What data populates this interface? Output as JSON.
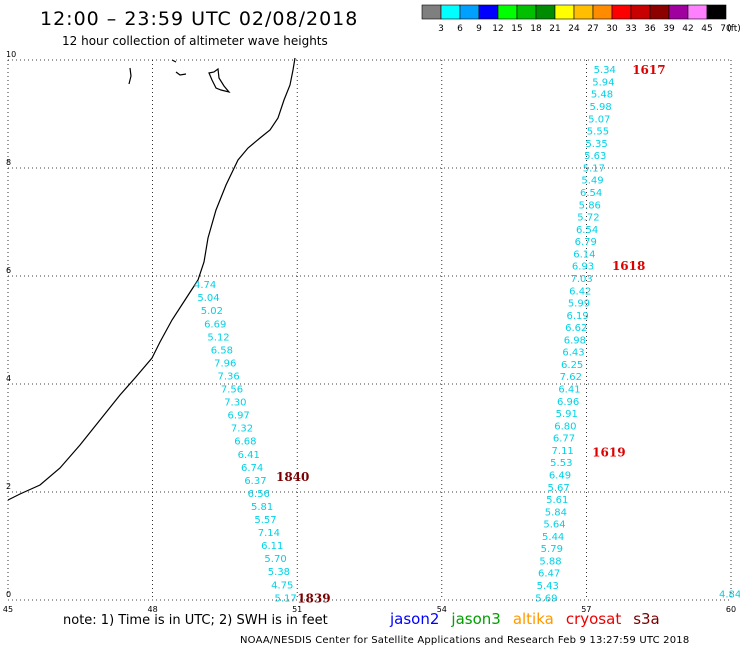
{
  "header": {
    "title": "12:00 – 23:59 UTC 02/08/2018",
    "subtitle": "12 hour collection of altimeter wave heights"
  },
  "legend": {
    "unit": "(ft)",
    "bins": [
      {
        "label": "3",
        "color": "#7f7f7f"
      },
      {
        "label": "6",
        "color": "#00ffff"
      },
      {
        "label": "9",
        "color": "#00a0ff"
      },
      {
        "label": "12",
        "color": "#0000ff"
      },
      {
        "label": "15",
        "color": "#00ff00"
      },
      {
        "label": "18",
        "color": "#00c000"
      },
      {
        "label": "21",
        "color": "#008c00"
      },
      {
        "label": "24",
        "color": "#ffff00"
      },
      {
        "label": "27",
        "color": "#ffbf00"
      },
      {
        "label": "30",
        "color": "#ff8c00"
      },
      {
        "label": "33",
        "color": "#ff0000"
      },
      {
        "label": "36",
        "color": "#c80000"
      },
      {
        "label": "39",
        "color": "#8c0000"
      },
      {
        "label": "42",
        "color": "#a000a0"
      },
      {
        "label": "45",
        "color": "#ff80ff"
      },
      {
        "label": "70",
        "color": "#000000"
      }
    ]
  },
  "axes": {
    "x_ticks": [
      "45",
      "48",
      "51",
      "54",
      "57",
      "60"
    ],
    "y_ticks": [
      "0",
      "2",
      "4",
      "6",
      "8",
      "10"
    ]
  },
  "chart_data": {
    "type": "scatter",
    "xlim": [
      45,
      60
    ],
    "ylim": [
      0,
      10
    ],
    "grid": true,
    "value_color": "#00d2e6",
    "tracks": [
      {
        "name": "track-west",
        "values": [
          "4.74",
          "5.04",
          "5.02",
          "6.69",
          "5.12",
          "6.58",
          "7.96",
          "7.36",
          "7.56",
          "7.30",
          "6.97",
          "7.32",
          "6.68",
          "6.41",
          "6.74",
          "6.37",
          "6.56",
          "5.81",
          "5.57",
          "7.14",
          "6.11",
          "5.70",
          "5.38",
          "4.75",
          "5.17"
        ],
        "start": {
          "lon": 49.09,
          "lat": 5.85
        },
        "end": {
          "lon": 50.76,
          "lat": 0.05
        }
      },
      {
        "name": "track-middle",
        "values": [
          "5.34",
          "5.94",
          "5.48",
          "5.98",
          "5.07",
          "5.55",
          "5.35",
          "5.63",
          "5.17",
          "5.49",
          "6.54",
          "5.86",
          "5.72",
          "6.54",
          "6.79",
          "6.14",
          "6.93",
          "7.03",
          "6.42",
          "5.99",
          "6.19",
          "6.62",
          "6.98",
          "6.43",
          "6.25",
          "7.62",
          "6.41",
          "6.96",
          "5.91",
          "6.80",
          "6.77",
          "7.11",
          "5.53",
          "6.49",
          "5.67",
          "5.61",
          "5.84",
          "5.64",
          "5.44",
          "5.79",
          "5.88",
          "6.47",
          "5.43",
          "5.69"
        ],
        "start": {
          "lon": 57.38,
          "lat": 9.83
        },
        "end": {
          "lon": 56.17,
          "lat": 0.05
        }
      }
    ],
    "hour_labels": [
      {
        "text": "1617",
        "lon": 57.95,
        "lat": 9.83,
        "color": "#dd0000"
      },
      {
        "text": "1618",
        "lon": 57.53,
        "lat": 6.2,
        "color": "#dd0000"
      },
      {
        "text": "1619",
        "lon": 57.12,
        "lat": 2.75,
        "color": "#dd0000"
      },
      {
        "text": "1840",
        "lon": 50.56,
        "lat": 2.3,
        "color": "#7a0000"
      },
      {
        "text": "1839",
        "lon": 51.0,
        "lat": 0.05,
        "color": "#7a0000"
      }
    ],
    "edge_values": [
      "4.84"
    ]
  },
  "notes": {
    "text": "note:  1) Time is in UTC;  2) SWH is in feet"
  },
  "satellites": [
    {
      "name": "jason2",
      "color": "#0000ff"
    },
    {
      "name": "jason3",
      "color": "#00a000"
    },
    {
      "name": "altika",
      "color": "#ff9900"
    },
    {
      "name": "cryosat",
      "color": "#ee0000"
    },
    {
      "name": "s3a",
      "color": "#7a0000"
    }
  ],
  "footer": {
    "text": "NOAA/NESDIS Center for Satellite Applications and Research    Feb  9 13:27:59 UTC 2018"
  }
}
